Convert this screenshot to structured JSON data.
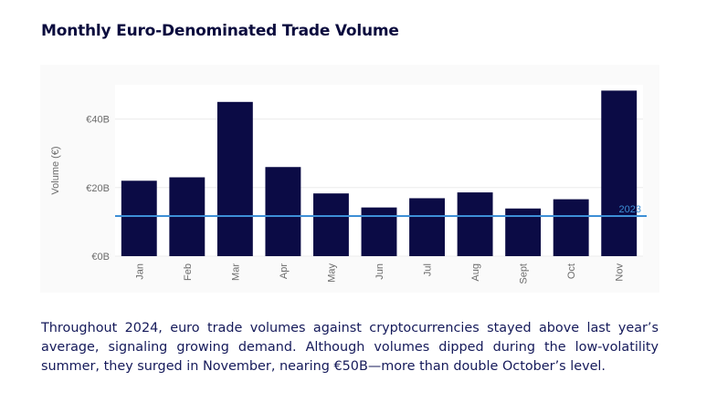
{
  "title": "Monthly Euro-Denominated Trade Volume",
  "paragraph": "Throughout 2024, euro trade volumes against cryptocurrencies stayed above last year’s average, signaling growing demand. Although volumes dipped during the low-volatility summer, they surged in November, nearing €50B—more than double October’s level.",
  "colors": {
    "bar": "#0b0b45",
    "reference_line": "#3d8fd6",
    "title": "#0b0c3e",
    "text": "#151a5a"
  },
  "chart_data": {
    "type": "bar",
    "categories": [
      "Jan",
      "Feb",
      "Mar",
      "Apr",
      "May",
      "Jun",
      "Jul",
      "Aug",
      "Sept",
      "Oct",
      "Nov"
    ],
    "values": [
      22,
      23,
      45,
      26,
      18.3,
      14.2,
      16.9,
      18.6,
      13.9,
      16.6,
      48.3
    ],
    "ylabel": "Volume (€)",
    "xlabel": "",
    "yticks": [
      0,
      20,
      40
    ],
    "ytick_labels": [
      "€0B",
      "€20B",
      "€40B"
    ],
    "ylim": [
      0,
      50
    ],
    "reference_line": {
      "value": 11.7,
      "label": "2023"
    },
    "grid": true
  }
}
